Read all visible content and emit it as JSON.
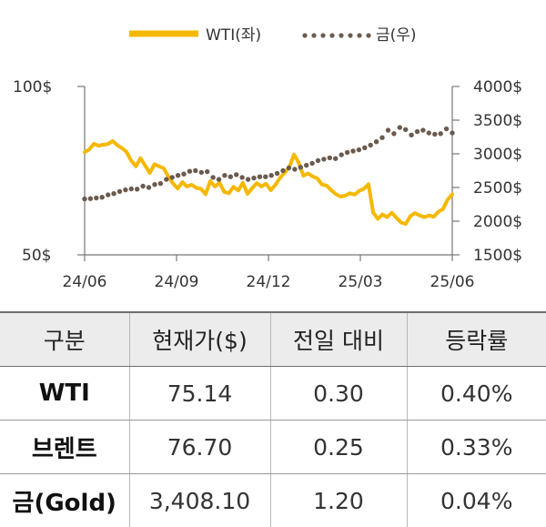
{
  "chart_data": {
    "type": "line",
    "x_ticks": [
      "24/06",
      "24/09",
      "24/12",
      "25/03",
      "25/06"
    ],
    "y_left": {
      "ticks": [
        "100$",
        "50$"
      ],
      "range": [
        50,
        100
      ]
    },
    "y_right": {
      "ticks": [
        "4000$",
        "3500$",
        "3000$",
        "2500$",
        "2000$",
        "1500$"
      ],
      "range": [
        1500,
        4000
      ]
    },
    "legend": [
      "WTI(좌)",
      "금(우)"
    ],
    "legend_position": "top",
    "series": [
      {
        "name": "WTI(좌)",
        "axis": "left",
        "color": "#f5b800",
        "style": "solid",
        "values": [
          80.5,
          81.3,
          83.0,
          82.4,
          82.7,
          82.9,
          83.8,
          82.6,
          81.7,
          80.6,
          78.0,
          76.3,
          78.7,
          76.5,
          74.3,
          76.9,
          76.3,
          75.7,
          73.2,
          71.2,
          69.7,
          71.6,
          70.3,
          70.8,
          69.9,
          69.6,
          68.0,
          71.9,
          70.3,
          71.4,
          68.7,
          68.3,
          70.2,
          69.1,
          71.4,
          68.1,
          69.8,
          71.3,
          70.3,
          71.1,
          69.2,
          70.8,
          72.9,
          74.4,
          76.1,
          79.8,
          77.4,
          73.5,
          74.2,
          73.3,
          72.7,
          70.9,
          70.6,
          69.2,
          68.0,
          67.3,
          67.6,
          68.3,
          67.9,
          69.0,
          69.6,
          71.0,
          62.6,
          60.7,
          62.0,
          61.2,
          62.5,
          61.0,
          59.6,
          59.2,
          61.5,
          62.4,
          61.7,
          61.2,
          61.7,
          61.3,
          62.8,
          63.6,
          66.4,
          68.0
        ]
      },
      {
        "name": "금(우)",
        "axis": "right",
        "color": "#6b5b4f",
        "style": "dotted",
        "values": [
          2330,
          2335,
          2345,
          2355,
          2390,
          2410,
          2440,
          2465,
          2480,
          2475,
          2520,
          2500,
          2545,
          2560,
          2620,
          2650,
          2680,
          2700,
          2740,
          2750,
          2725,
          2735,
          2650,
          2620,
          2680,
          2660,
          2690,
          2650,
          2620,
          2640,
          2660,
          2660,
          2680,
          2710,
          2750,
          2790,
          2770,
          2800,
          2830,
          2860,
          2900,
          2920,
          2940,
          2930,
          2985,
          3020,
          3040,
          3060,
          3090,
          3130,
          3180,
          3240,
          3350,
          3300,
          3390,
          3360,
          3280,
          3330,
          3350,
          3310,
          3290,
          3300,
          3370,
          3310
        ]
      }
    ]
  },
  "table": {
    "headers": [
      "구분",
      "현재가($)",
      "전일 대비",
      "등락률"
    ],
    "rows": [
      [
        "WTI",
        "75.14",
        "0.30",
        "0.40%"
      ],
      [
        "브렌트",
        "76.70",
        "0.25",
        "0.33%"
      ],
      [
        "금(Gold)",
        "3,408.10",
        "1.20",
        "0.04%"
      ]
    ]
  }
}
